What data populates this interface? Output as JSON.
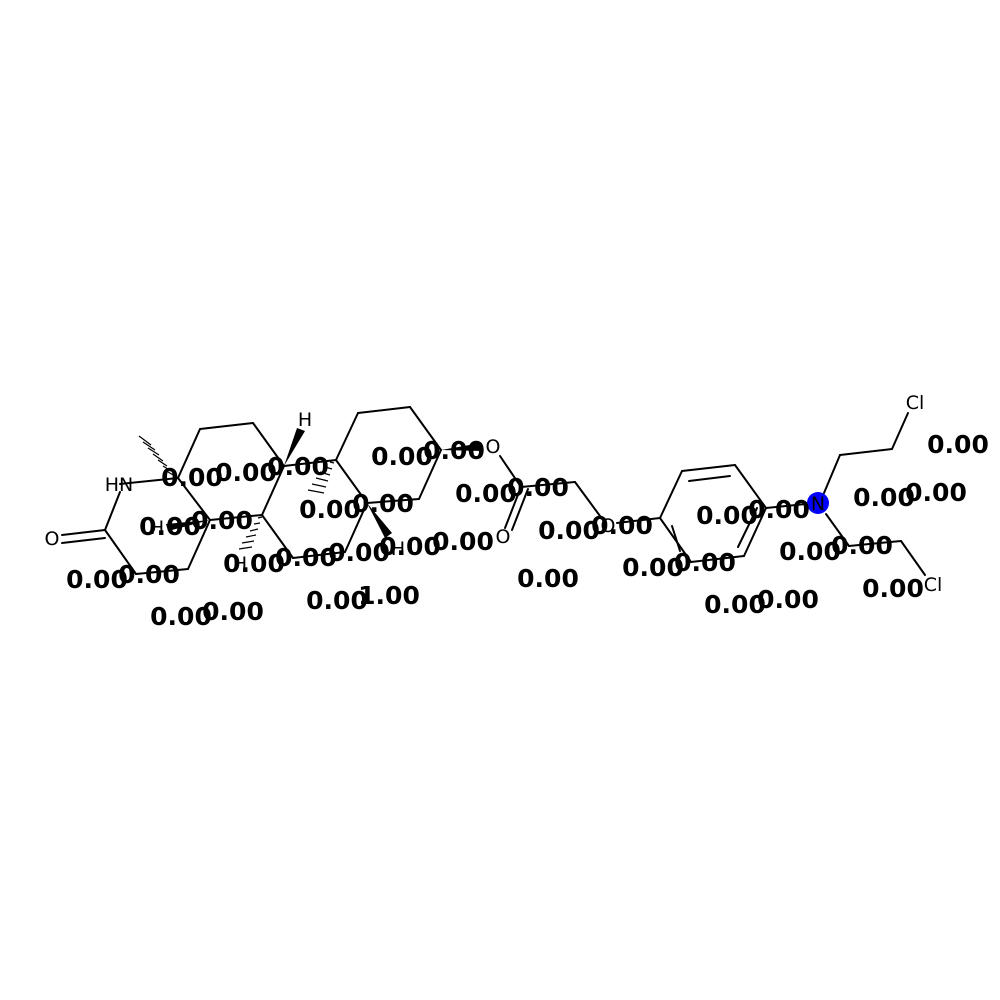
{
  "molecule": {
    "atom_labels": {
      "hn": "HN",
      "o_carbonyl_left": "O",
      "h_upper": "H",
      "h_left": "H",
      "h_mid": "H",
      "h_right": "H",
      "o_ester": "O",
      "o_carbonyl": "O",
      "o_ether": "O",
      "n": "N",
      "cl_top": "Cl",
      "cl_bottom": "Cl"
    },
    "highlight_color": "#0000ff",
    "bond_color": "#000000"
  },
  "atom_weights": [
    "0.00",
    "0.00",
    "0.00",
    "0.00",
    "0.00",
    "0.00",
    "0.00",
    "0.00",
    "0.00",
    "0.00",
    "0.00",
    "0.00",
    "0.00",
    "0.00",
    "0.00",
    "0.00",
    "0.00",
    "0.00",
    "0.00",
    "0.00",
    "0.00",
    "0.00",
    "0.00",
    "0.00",
    "0.00",
    "0.00",
    "0.00",
    "0.00",
    "0.00",
    "0.00",
    "0.00",
    "0.00",
    "0.00",
    "1.00",
    "0.00",
    "0.00",
    "0.00"
  ]
}
